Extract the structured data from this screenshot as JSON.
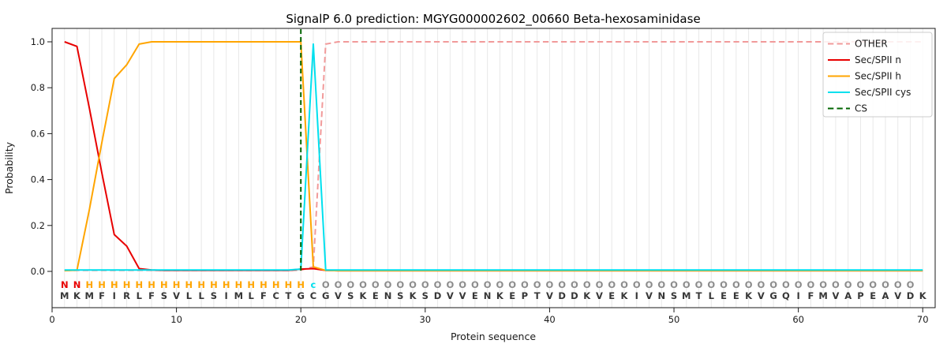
{
  "figure": {
    "background": "#ffffff"
  },
  "chart_data": {
    "type": "line",
    "title": "SignalP 6.0 prediction: MGYG000002602_00660 Beta-hexosaminidase",
    "xlabel": "Protein sequence",
    "ylabel": "Probability",
    "x_ticks": [
      0,
      10,
      20,
      30,
      40,
      50,
      60,
      70
    ],
    "y_ticks": [
      0.0,
      0.2,
      0.4,
      0.6,
      0.8,
      1.0
    ],
    "xlim": [
      0,
      71
    ],
    "ylim": [
      -0.16,
      1.06
    ],
    "x_range": [
      1,
      70
    ],
    "grid": "light vertical gridline at every residue position 1-70",
    "legend": {
      "position": "upper right",
      "entries": [
        "OTHER",
        "Sec/SPII n",
        "Sec/SPII h",
        "Sec/SPII cys",
        "CS"
      ]
    },
    "series": [
      {
        "name": "OTHER",
        "color": "#f19a9a",
        "style": "dashed",
        "values": [
          0.004,
          0.004,
          0.004,
          0.004,
          0.004,
          0.004,
          0.004,
          0.004,
          0.004,
          0.004,
          0.004,
          0.004,
          0.004,
          0.004,
          0.004,
          0.004,
          0.004,
          0.004,
          0.004,
          0.005,
          0.02,
          0.99,
          1.0,
          1.0,
          1.0,
          1.0,
          1.0,
          1.0,
          1.0,
          1.0,
          1.0,
          1.0,
          1.0,
          1.0,
          1.0,
          1.0,
          1.0,
          1.0,
          1.0,
          1.0,
          1.0,
          1.0,
          1.0,
          1.0,
          1.0,
          1.0,
          1.0,
          1.0,
          1.0,
          1.0,
          1.0,
          1.0,
          1.0,
          1.0,
          1.0,
          1.0,
          1.0,
          1.0,
          1.0,
          1.0,
          1.0,
          1.0,
          1.0,
          1.0,
          1.0,
          1.0,
          1.0,
          1.0,
          1.0,
          1.0
        ]
      },
      {
        "name": "Sec/SPII n",
        "color": "#e80000",
        "style": "solid",
        "values": [
          1.0,
          0.98,
          0.71,
          0.43,
          0.16,
          0.11,
          0.012,
          0.006,
          0.004,
          0.004,
          0.004,
          0.004,
          0.004,
          0.004,
          0.004,
          0.004,
          0.004,
          0.004,
          0.004,
          0.01,
          0.012,
          0.004,
          0.003,
          0.003,
          0.003,
          0.003,
          0.003,
          0.003,
          0.003,
          0.003,
          0.003,
          0.003,
          0.003,
          0.003,
          0.003,
          0.003,
          0.003,
          0.003,
          0.003,
          0.003,
          0.003,
          0.003,
          0.003,
          0.003,
          0.003,
          0.003,
          0.003,
          0.003,
          0.003,
          0.003,
          0.003,
          0.003,
          0.003,
          0.003,
          0.003,
          0.003,
          0.003,
          0.003,
          0.003,
          0.003,
          0.003,
          0.003,
          0.003,
          0.003,
          0.003,
          0.003,
          0.003,
          0.003,
          0.003,
          0.003
        ]
      },
      {
        "name": "Sec/SPII h",
        "color": "#ffa500",
        "style": "solid",
        "values": [
          0.003,
          0.005,
          0.27,
          0.56,
          0.84,
          0.9,
          0.99,
          1.0,
          1.0,
          1.0,
          1.0,
          1.0,
          1.0,
          1.0,
          1.0,
          1.0,
          1.0,
          1.0,
          1.0,
          1.0,
          0.02,
          0.004,
          0.003,
          0.003,
          0.003,
          0.003,
          0.003,
          0.003,
          0.003,
          0.003,
          0.003,
          0.003,
          0.003,
          0.003,
          0.003,
          0.003,
          0.003,
          0.003,
          0.003,
          0.003,
          0.003,
          0.003,
          0.003,
          0.003,
          0.003,
          0.003,
          0.003,
          0.003,
          0.003,
          0.003,
          0.003,
          0.003,
          0.003,
          0.003,
          0.003,
          0.003,
          0.003,
          0.003,
          0.003,
          0.003,
          0.003,
          0.003,
          0.003,
          0.003,
          0.003,
          0.003,
          0.003,
          0.003,
          0.003,
          0.003
        ]
      },
      {
        "name": "Sec/SPII cys",
        "color": "#00e0ee",
        "style": "solid",
        "values": [
          0.006,
          0.006,
          0.006,
          0.006,
          0.006,
          0.006,
          0.006,
          0.006,
          0.006,
          0.006,
          0.006,
          0.006,
          0.006,
          0.006,
          0.006,
          0.006,
          0.006,
          0.006,
          0.006,
          0.01,
          0.99,
          0.006,
          0.006,
          0.006,
          0.006,
          0.006,
          0.006,
          0.006,
          0.006,
          0.006,
          0.006,
          0.006,
          0.006,
          0.006,
          0.006,
          0.006,
          0.006,
          0.006,
          0.006,
          0.006,
          0.006,
          0.006,
          0.006,
          0.006,
          0.006,
          0.006,
          0.006,
          0.006,
          0.006,
          0.006,
          0.006,
          0.006,
          0.006,
          0.006,
          0.006,
          0.006,
          0.006,
          0.006,
          0.006,
          0.006,
          0.006,
          0.006,
          0.006,
          0.006,
          0.006,
          0.006,
          0.006,
          0.006,
          0.006,
          0.006
        ]
      }
    ],
    "cs_marker": {
      "name": "CS",
      "color": "#006400",
      "style": "dashed",
      "x": 20
    },
    "sequence": "MKMFIRLFSVLLSIMLFCTGCGVSKENSKSDVVENKEPTVDDKVEKIVNSMTLEEKVGQIFMVAPEAVDK",
    "residue_labels": "NNHHHHHHHHHHHHHHHHHHcOOOOOOOOOOOOOOOOOOOOOOOOOOOOOOOOOOOOOOOOOOOOOOOO",
    "label_colors": {
      "N": "#e80000",
      "H": "#ffa500",
      "c": "#00e0ee",
      "O": "#8c8c8c"
    },
    "sequence_color": "#363636"
  }
}
